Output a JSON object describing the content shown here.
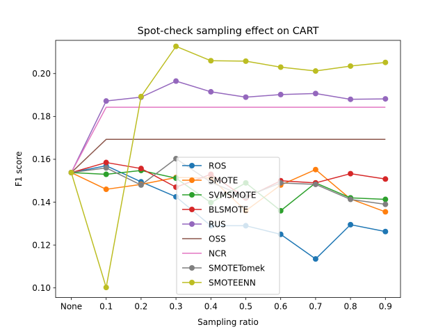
{
  "chart_data": {
    "type": "line",
    "title": "Spot-check sampling effect on CART",
    "xlabel": "Sampling ratio",
    "ylabel": "F1 score",
    "categories": [
      "None",
      "0.1",
      "0.2",
      "0.3",
      "0.4",
      "0.5",
      "0.6",
      "0.7",
      "0.8",
      "0.9"
    ],
    "ylim": [
      0.0955,
      0.2155
    ],
    "yticks": [
      "0.10",
      "0.12",
      "0.14",
      "0.16",
      "0.18",
      "0.20"
    ],
    "grid": false,
    "legend": "center",
    "series": [
      {
        "name": "ROS",
        "color": "#1f77b4",
        "markers": true,
        "values": [
          0.1538,
          0.157,
          0.1495,
          0.1425,
          0.129,
          0.129,
          0.125,
          0.1135,
          0.1295,
          0.1263
        ]
      },
      {
        "name": "SMOTE",
        "color": "#ff7f0e",
        "markers": true,
        "values": [
          0.1538,
          0.146,
          0.1483,
          0.1515,
          0.1513,
          0.136,
          0.148,
          0.1552,
          0.1415,
          0.1355
        ]
      },
      {
        "name": "SVMSMOTE",
        "color": "#2ca02c",
        "markers": true,
        "values": [
          0.1538,
          0.153,
          0.1548,
          0.1512,
          0.1398,
          0.149,
          0.136,
          0.149,
          0.142,
          0.1413
        ]
      },
      {
        "name": "BLSMOTE",
        "color": "#d62728",
        "markers": true,
        "values": [
          0.1538,
          0.1585,
          0.1557,
          0.147,
          0.153,
          0.142,
          0.15,
          0.149,
          0.1533,
          0.1508
        ]
      },
      {
        "name": "RUS",
        "color": "#9467bd",
        "markers": true,
        "values": [
          0.1538,
          0.1872,
          0.189,
          0.1965,
          0.1915,
          0.189,
          0.1902,
          0.1907,
          0.188,
          0.1882
        ]
      },
      {
        "name": "OSS",
        "color": "#8c564b",
        "markers": false,
        "values": [
          0.1538,
          0.1693,
          0.1693,
          0.1693,
          0.1693,
          0.1693,
          0.1693,
          0.1693,
          0.1693,
          0.1693
        ]
      },
      {
        "name": "NCR",
        "color": "#e377c2",
        "markers": false,
        "values": [
          0.1538,
          0.1843,
          0.1843,
          0.1843,
          0.1843,
          0.1843,
          0.1843,
          0.1843,
          0.1843,
          0.1843
        ]
      },
      {
        "name": "SMOTETomek",
        "color": "#7f7f7f",
        "markers": true,
        "values": [
          0.1538,
          0.156,
          0.148,
          0.1603,
          0.1493,
          0.1425,
          0.149,
          0.1483,
          0.1413,
          0.139
        ]
      },
      {
        "name": "SMOTEENN",
        "color": "#bcbd22",
        "markers": true,
        "values": [
          0.1538,
          0.1002,
          0.1893,
          0.2127,
          0.206,
          0.2058,
          0.203,
          0.2012,
          0.2035,
          0.2052
        ]
      }
    ]
  }
}
